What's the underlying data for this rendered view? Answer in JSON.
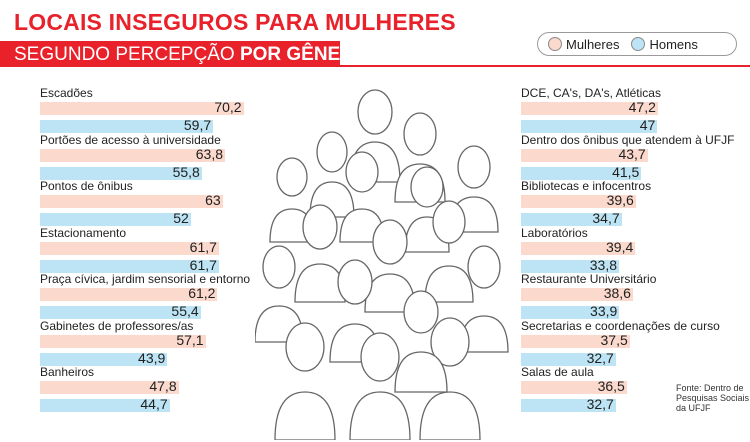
{
  "title": "LOCAIS INSEGUROS PARA MULHERES",
  "subtitle_prefix": "SEGUNDO PERCEPÇÃO ",
  "subtitle_bold": "POR GÊNERO",
  "legend": {
    "women": "Mulheres",
    "men": "Homens"
  },
  "colors": {
    "women": "#fbd9cd",
    "men": "#bde4f4",
    "accent": "#e8212b"
  },
  "source": "Fonte: Dentro de Pesquisas Sociais da UFJF",
  "chart_data": {
    "type": "bar",
    "title": "LOCAIS INSEGUROS PARA MULHERES",
    "subtitle": "SEGUNDO PERCEPÇÃO POR GÊNERO",
    "orientation": "horizontal",
    "legend_placement": "top-right",
    "categories": [
      "Escadões",
      "Portões de acesso à universidade",
      "Pontos de ônibus",
      "Estacionamento",
      "Praça cívica, jardim sensorial e entorno",
      "Gabinetes de professores/as",
      "Banheiros",
      "DCE, CA's, DA's, Atléticas",
      "Dentro dos ônibus que atendem à UFJF",
      "Bibliotecas e infocentros",
      "Laboratórios",
      "Restaurante Universitário",
      "Secretarias e coordenações de curso",
      "Salas de aula"
    ],
    "series": [
      {
        "name": "Mulheres",
        "values": [
          70.2,
          63.8,
          63,
          61.7,
          61.2,
          57.1,
          47.8,
          47.2,
          43.7,
          39.6,
          39.4,
          38.6,
          37.5,
          36.5
        ],
        "labels": [
          "70,2",
          "63,8",
          "63",
          "61,7",
          "61,2",
          "57,1",
          "47,8",
          "47,2",
          "43,7",
          "39,6",
          "39,4",
          "38,6",
          "37,5",
          "36,5"
        ]
      },
      {
        "name": "Homens",
        "values": [
          59.7,
          55.8,
          52,
          61.7,
          55.4,
          43.9,
          44.7,
          47,
          41.5,
          34.7,
          33.8,
          33.9,
          32.7,
          32.7
        ],
        "labels": [
          "59,7",
          "55,8",
          "52",
          "61,7",
          "55,4",
          "43,9",
          "44,7",
          "47",
          "41,5",
          "34,7",
          "33,8",
          "33,9",
          "32,7",
          "32,7"
        ]
      }
    ]
  }
}
